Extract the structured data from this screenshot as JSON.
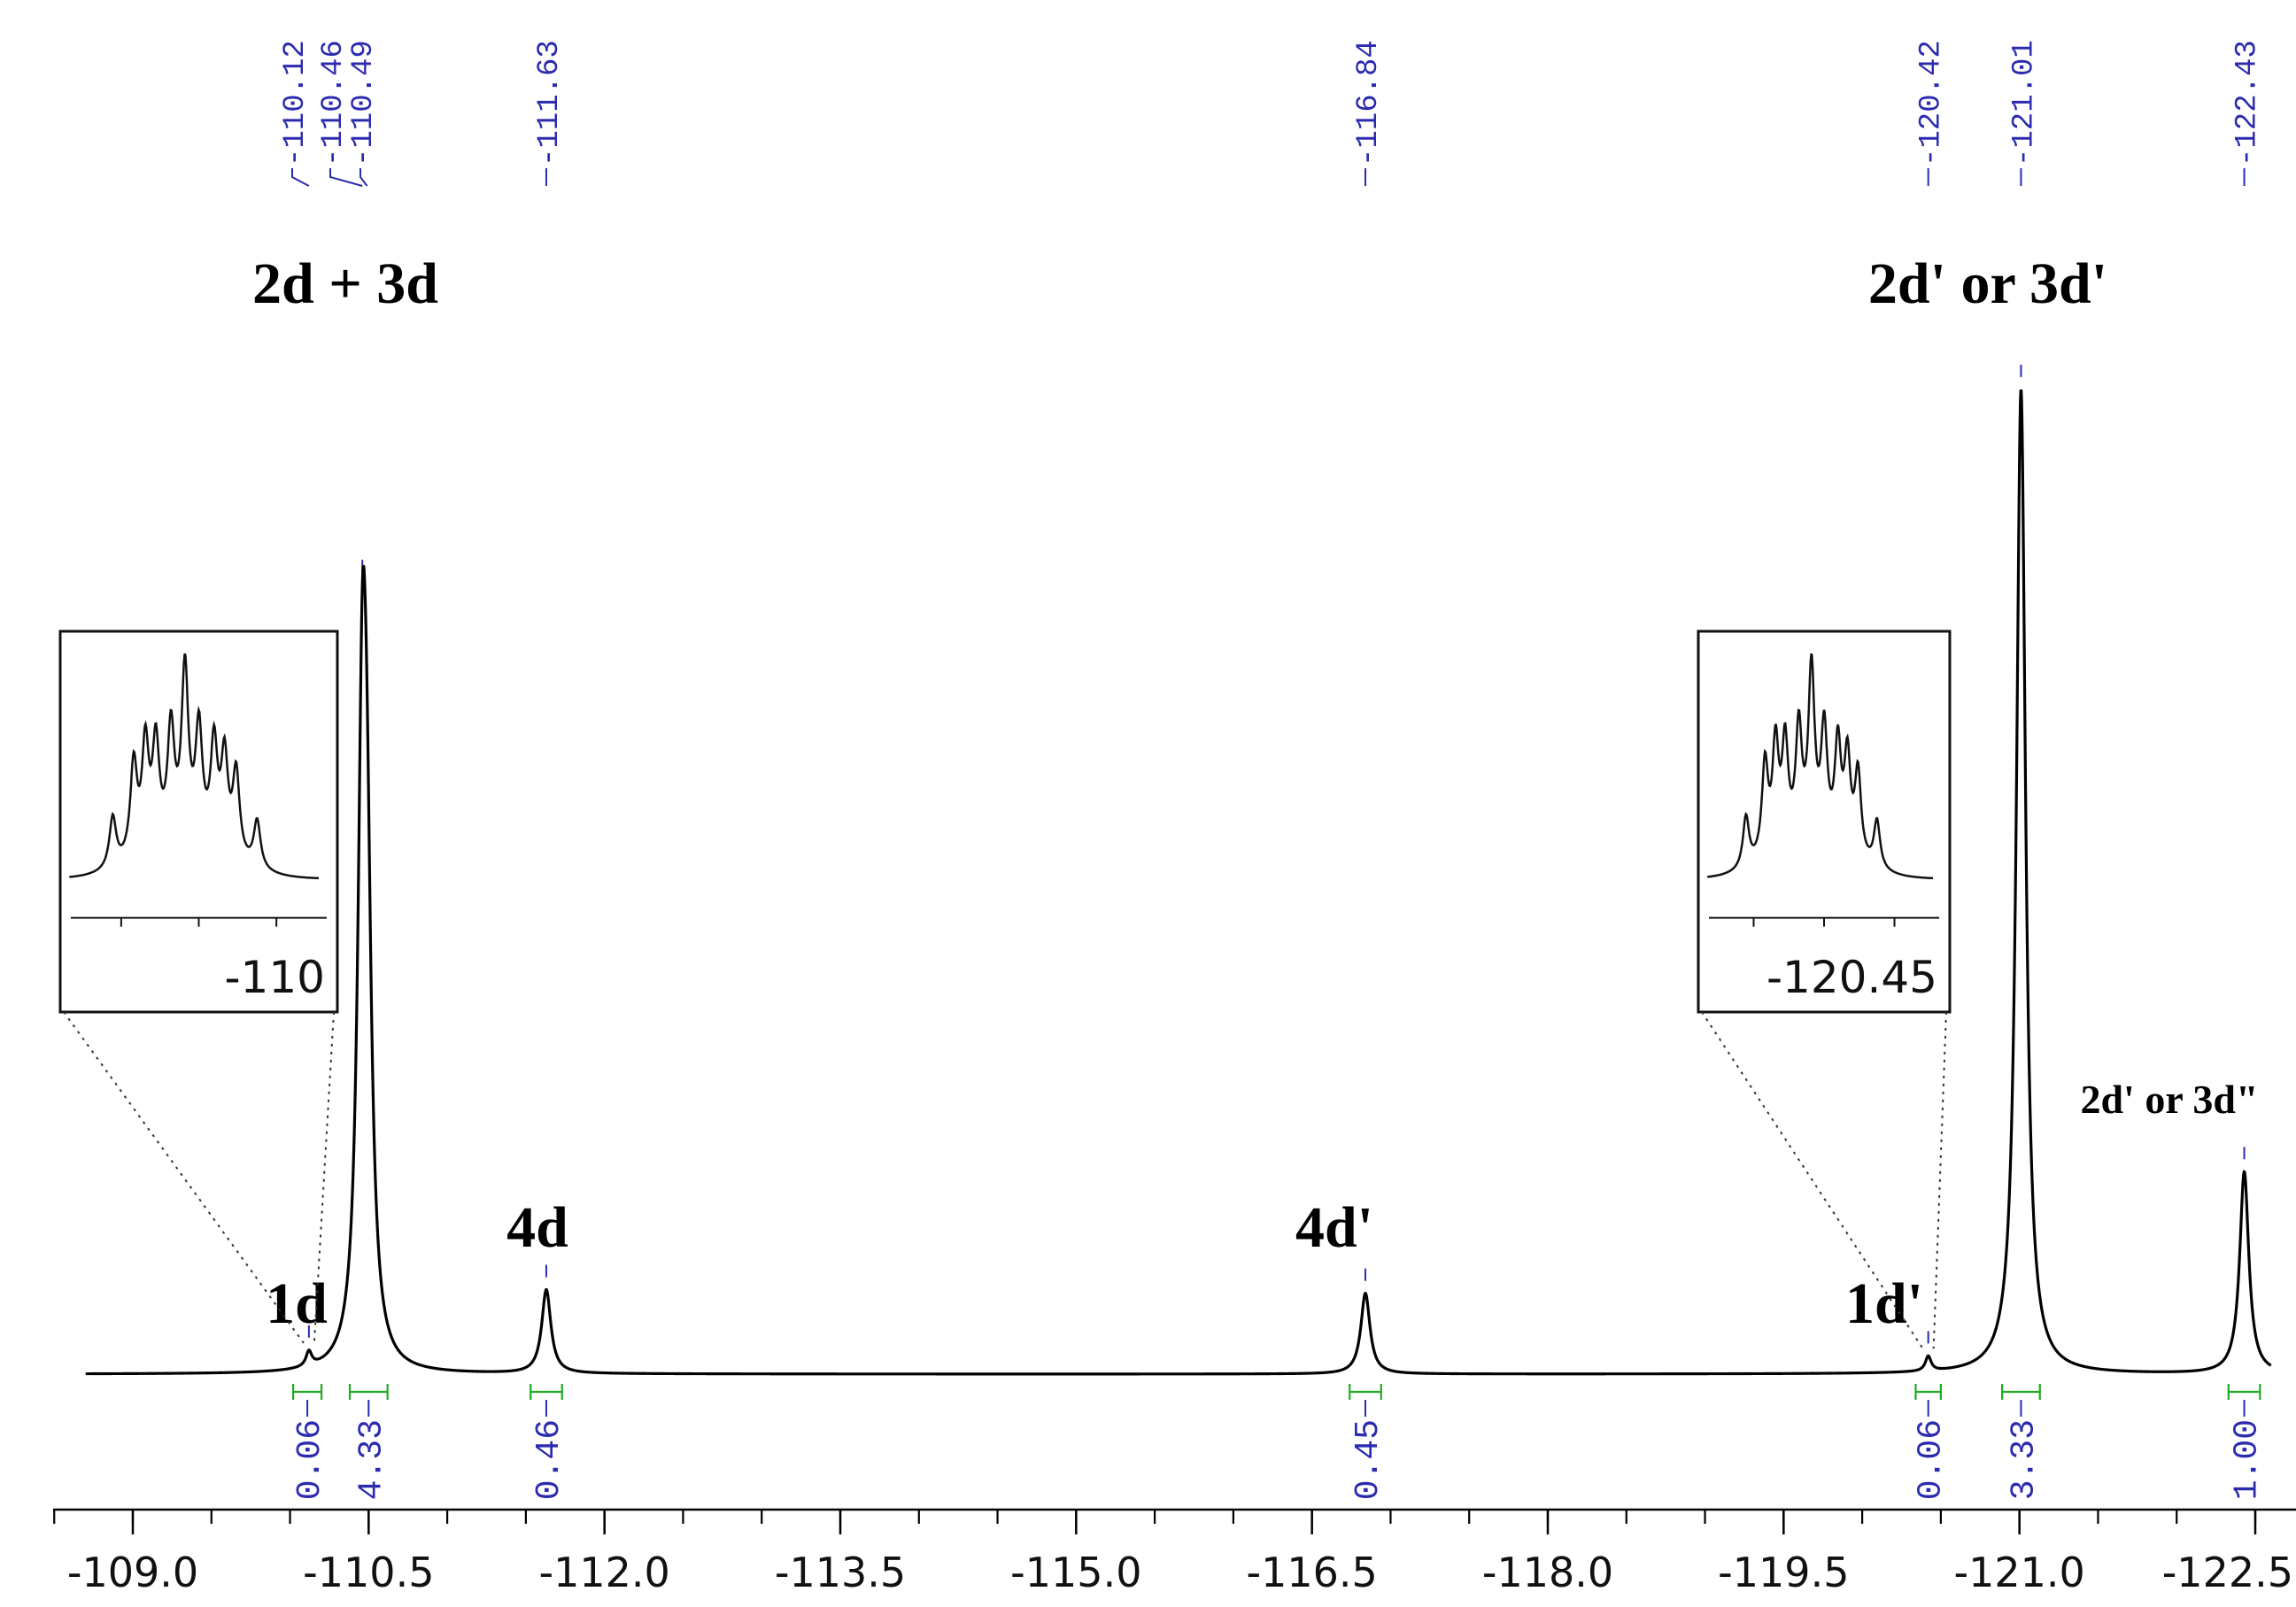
{
  "chart_data": {
    "type": "line",
    "title": "",
    "xlabel": "",
    "ylabel": "",
    "xlim": [
      -108.7,
      -122.6
    ],
    "x_reversed": true,
    "grid": false,
    "x_ticks": [
      -109.0,
      -110.5,
      -112.0,
      -113.5,
      -115.0,
      -116.5,
      -118.0,
      -119.5,
      -121.0,
      -122.5
    ],
    "x_tick_labels": [
      "-109.0",
      "-110.5",
      "-112.0",
      "-113.5",
      "-115.0",
      "-116.5",
      "-118.0",
      "-119.5",
      "-121.0",
      "-122.5"
    ],
    "minor_tick_step": 0.5,
    "peak_labels": [
      {
        "x": -110.12,
        "label": "-110.12"
      },
      {
        "x": -110.46,
        "label": "-110.46"
      },
      {
        "x": -110.49,
        "label": "-110.49"
      },
      {
        "x": -111.63,
        "label": "-111.63"
      },
      {
        "x": -116.84,
        "label": "-116.84"
      },
      {
        "x": -120.42,
        "label": "-120.42"
      },
      {
        "x": -121.01,
        "label": "-121.01"
      },
      {
        "x": -122.43,
        "label": "-122.43"
      }
    ],
    "peaks": [
      {
        "x": -110.12,
        "height": 0.015,
        "width": 0.022
      },
      {
        "x": -110.46,
        "height": 0.6,
        "width": 0.035
      },
      {
        "x": -110.49,
        "height": 0.35,
        "width": 0.035
      },
      {
        "x": -111.63,
        "height": 0.085,
        "width": 0.035
      },
      {
        "x": -116.84,
        "height": 0.082,
        "width": 0.035
      },
      {
        "x": -120.42,
        "height": 0.015,
        "width": 0.022
      },
      {
        "x": -121.01,
        "height": 1.0,
        "width": 0.035
      },
      {
        "x": -122.43,
        "height": 0.205,
        "width": 0.035
      }
    ],
    "integrals": [
      {
        "x1": -110.02,
        "x2": -110.2,
        "label": "0.06"
      },
      {
        "x1": -110.38,
        "x2": -110.62,
        "label": "4.33"
      },
      {
        "x1": -111.53,
        "x2": -111.73,
        "label": "0.46"
      },
      {
        "x1": -116.74,
        "x2": -116.94,
        "label": "0.45"
      },
      {
        "x1": -120.34,
        "x2": -120.5,
        "label": "0.06"
      },
      {
        "x1": -120.89,
        "x2": -121.13,
        "label": "3.33"
      },
      {
        "x1": -122.33,
        "x2": -122.53,
        "label": "1.00"
      }
    ],
    "annotations": [
      {
        "text": "2d + 3d",
        "x": -110.3,
        "size": "large"
      },
      {
        "text": "1d",
        "x": -110.0,
        "size": "large"
      },
      {
        "text": "4d",
        "x": -111.63,
        "size": "large"
      },
      {
        "text": "4d'",
        "x": -116.84,
        "size": "large"
      },
      {
        "text": "1d'",
        "x": -120.42,
        "size": "large"
      },
      {
        "text": "2d' or 3d'",
        "x": -121.0,
        "size": "large"
      },
      {
        "text": "2d' or 3d\"",
        "x": -122.43,
        "size": "small"
      }
    ],
    "insets": [
      {
        "target_x": -110.12,
        "label": "-110"
      },
      {
        "target_x": -120.42,
        "label": "-120.45"
      }
    ]
  },
  "colors": {
    "spectrum": "#000000",
    "peak_label": "#2b2bb0",
    "integral": "#22aa22",
    "integral_label": "#2b2bb0"
  }
}
